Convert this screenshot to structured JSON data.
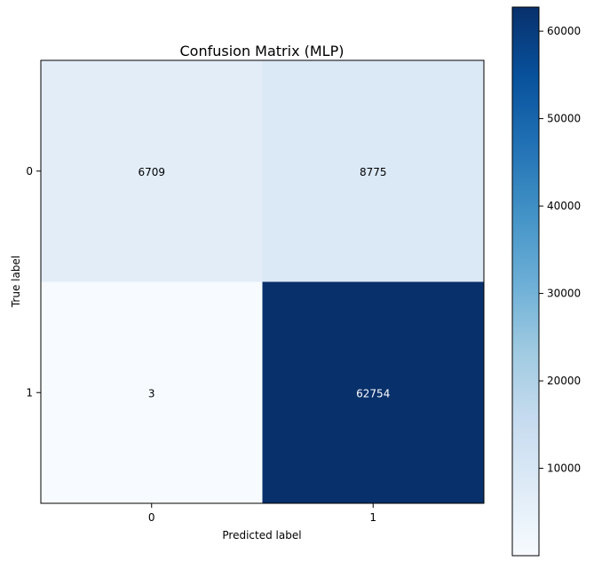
{
  "chart_data": {
    "type": "heatmap",
    "title": "Confusion Matrix (MLP)",
    "xlabel": "Predicted label",
    "ylabel": "True label",
    "x_categories": [
      "0",
      "1"
    ],
    "y_categories": [
      "0",
      "1"
    ],
    "matrix": [
      [
        6709,
        8775
      ],
      [
        3,
        62754
      ]
    ],
    "cell_labels": [
      [
        "6709",
        "8775"
      ],
      [
        "3",
        "62754"
      ]
    ],
    "colormap": "Blues",
    "color_range": [
      3,
      62754
    ],
    "colorbar": {
      "ticks": [
        10000,
        20000,
        30000,
        40000,
        50000,
        60000
      ],
      "tick_labels": [
        "10000",
        "20000",
        "30000",
        "40000",
        "50000",
        "60000"
      ]
    },
    "grid": false,
    "legend": "colorbar at right"
  }
}
